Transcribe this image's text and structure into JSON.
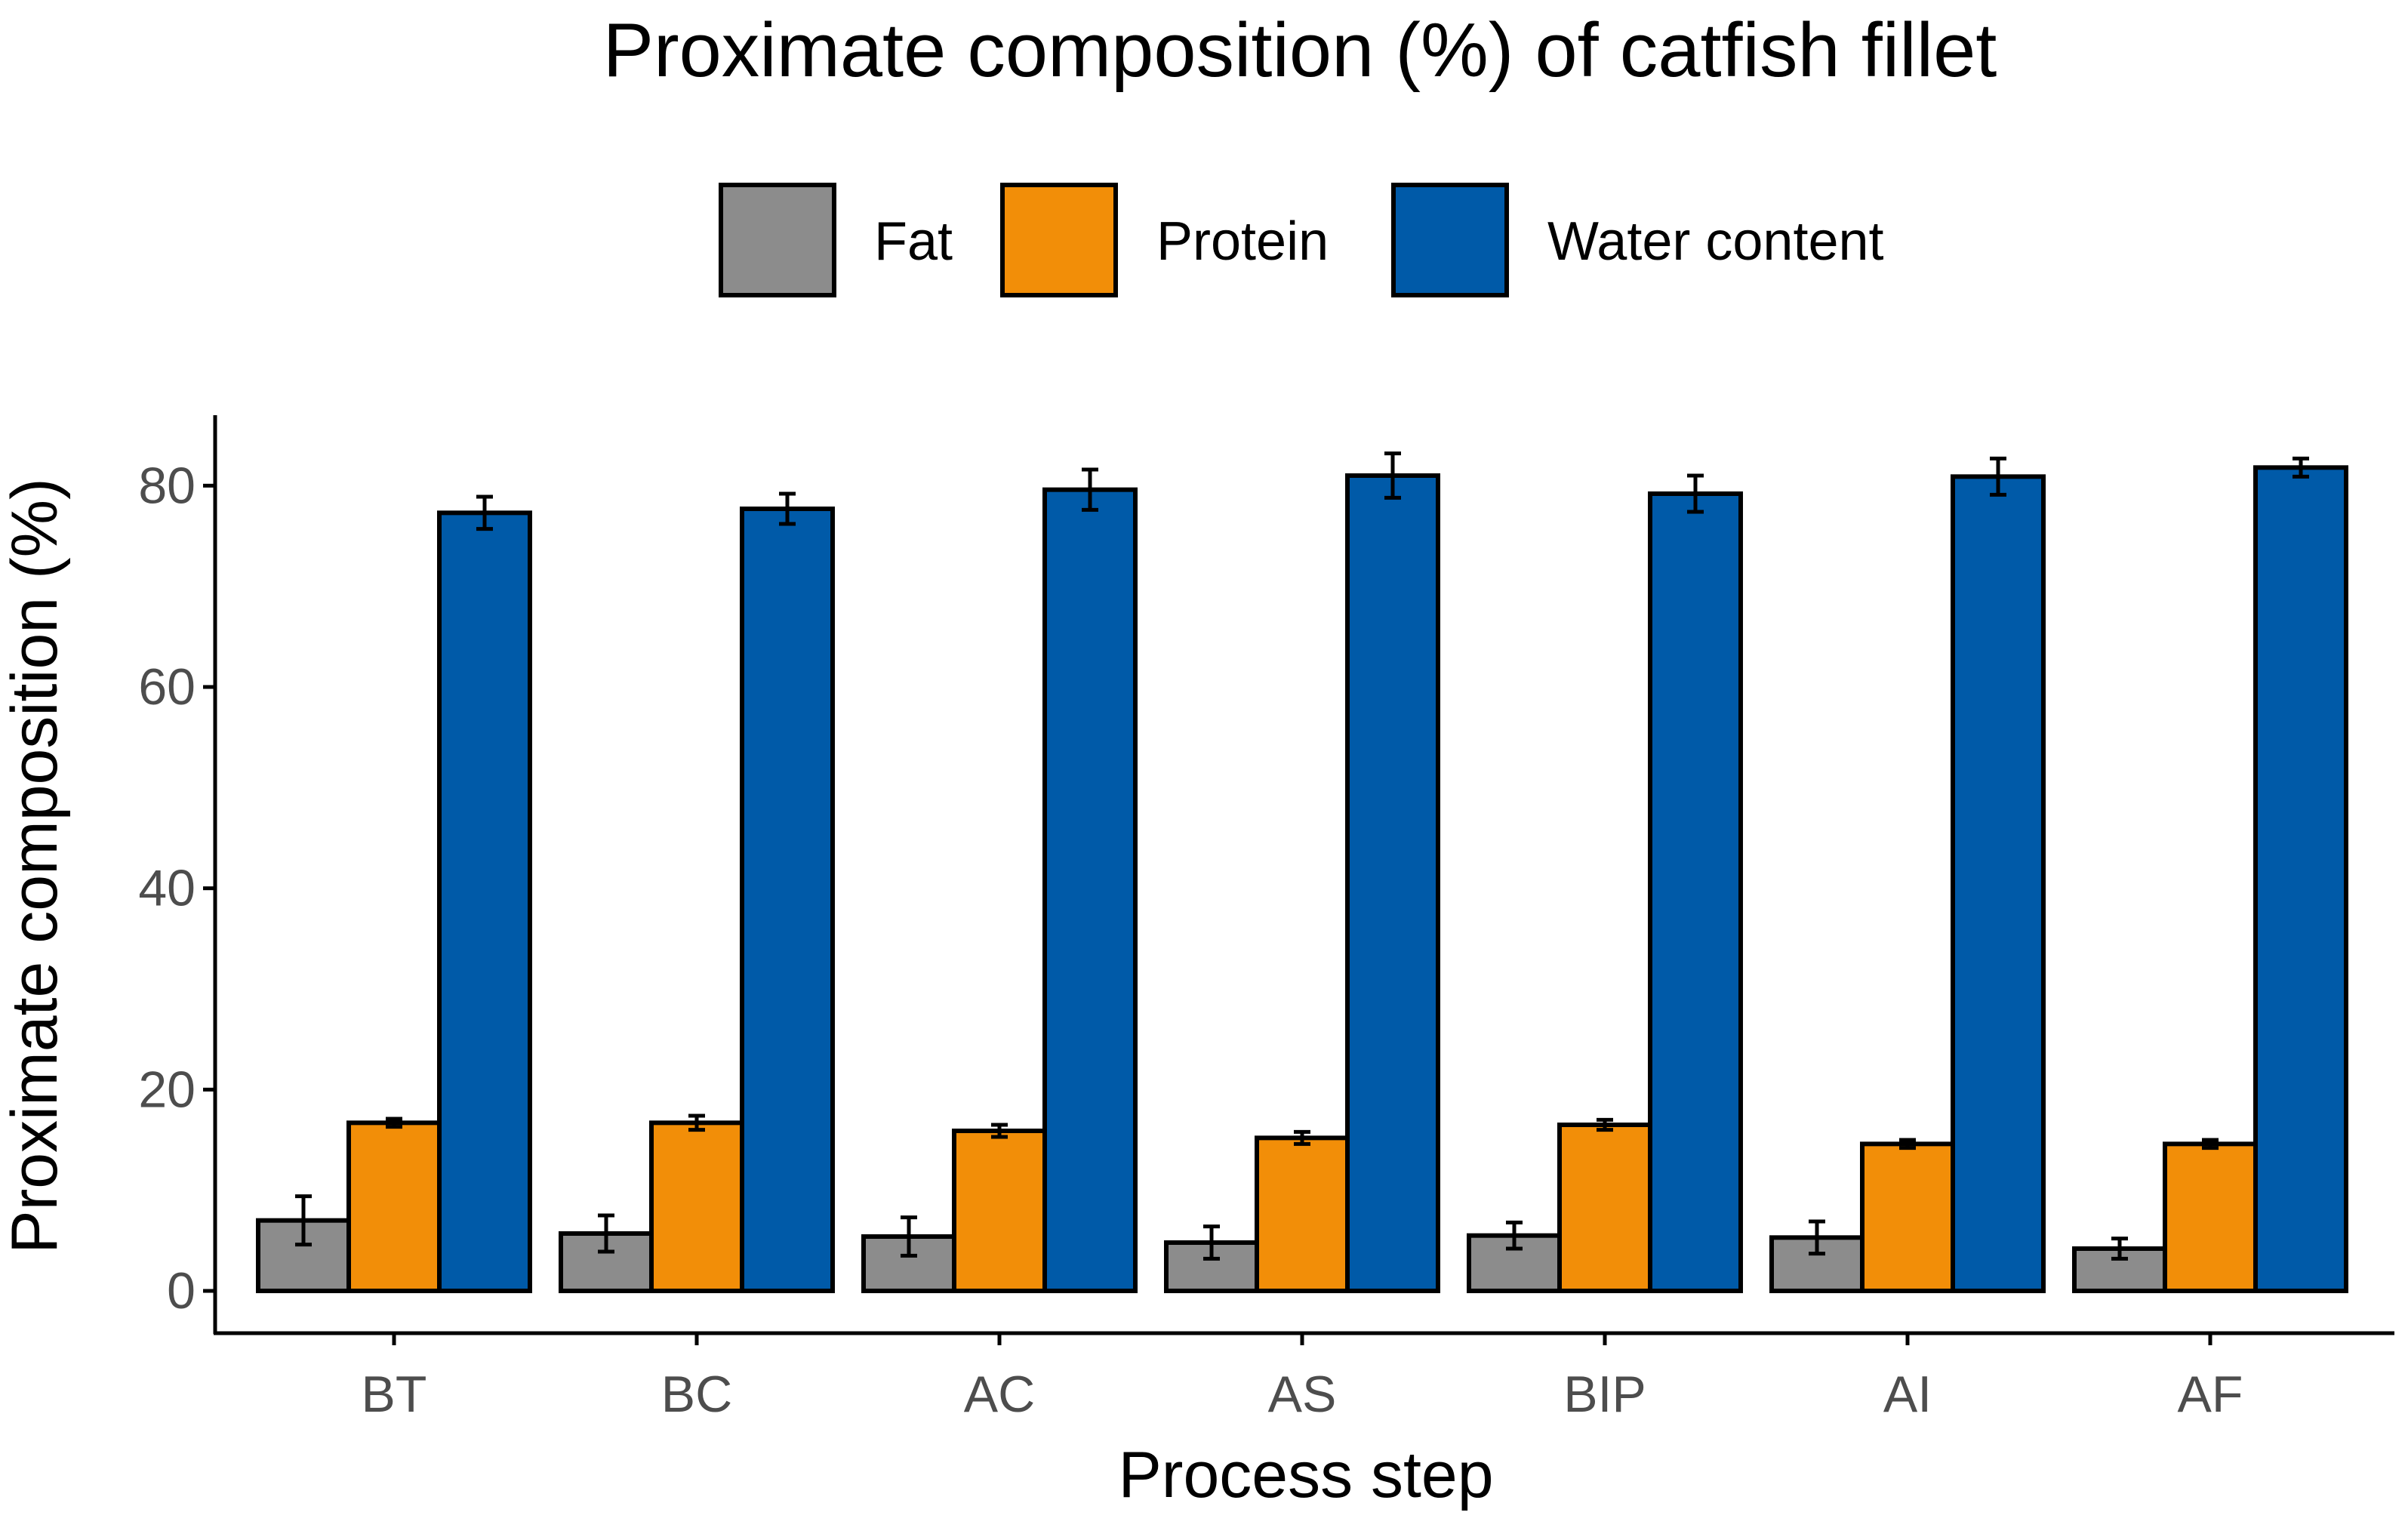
{
  "chart_data": {
    "type": "bar",
    "title": "Proximate composition (%) of catfish fillet",
    "xlabel": "Process step",
    "ylabel": "Proximate composition (%)",
    "categories": [
      "BT",
      "BC",
      "AC",
      "AS",
      "BIP",
      "AI",
      "AF"
    ],
    "ylim": [
      -4.2,
      87
    ],
    "yticks": [
      0,
      20,
      40,
      60,
      80
    ],
    "ytick_labels": [
      "0",
      "20",
      "40",
      "60",
      "80"
    ],
    "grid": false,
    "legend_position": "top",
    "series": [
      {
        "name": "Fat",
        "color": "#8c8c8c",
        "values": [
          7.0,
          5.7,
          5.4,
          4.8,
          5.5,
          5.3,
          4.2
        ],
        "errors": [
          2.4,
          1.8,
          1.9,
          1.6,
          1.3,
          1.6,
          1.0
        ]
      },
      {
        "name": "Protein",
        "color": "#f28e08",
        "values": [
          16.7,
          16.7,
          15.9,
          15.2,
          16.5,
          14.6,
          14.6
        ],
        "errors": [
          0.4,
          0.7,
          0.6,
          0.6,
          0.5,
          0.4,
          0.4
        ]
      },
      {
        "name": "Water content",
        "color": "#005aa8",
        "values": [
          77.3,
          77.7,
          79.6,
          81.0,
          79.2,
          80.9,
          81.8
        ],
        "errors": [
          1.6,
          1.5,
          2.0,
          2.2,
          1.8,
          1.8,
          0.9
        ]
      }
    ]
  }
}
